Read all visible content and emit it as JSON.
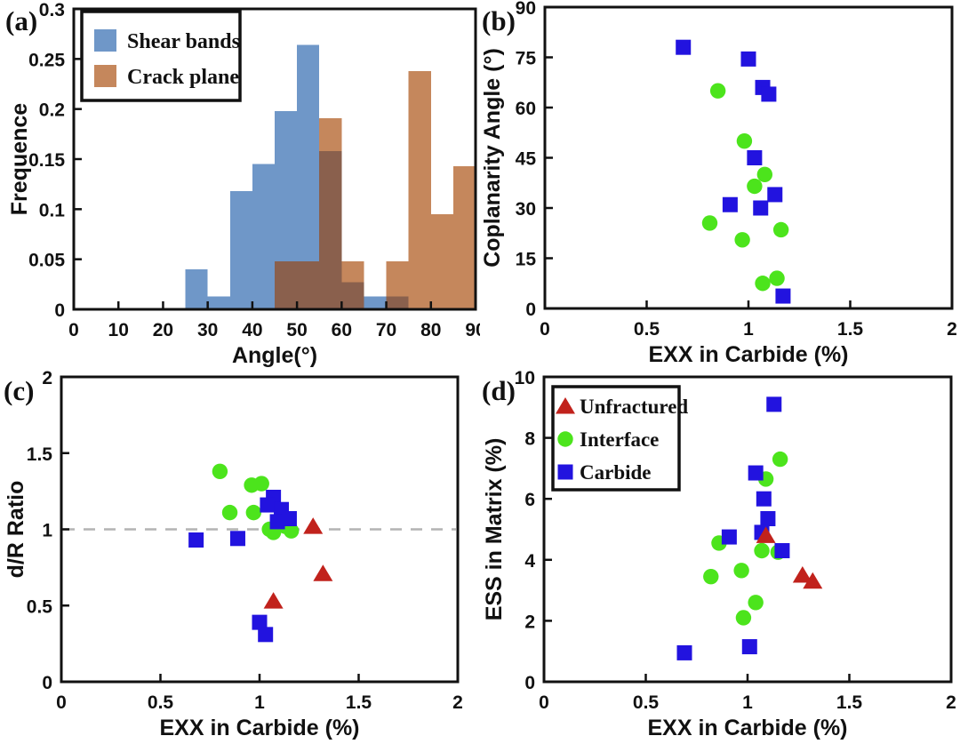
{
  "chart_data": [
    {
      "panel_label": "(a)",
      "type": "histogram",
      "xlabel": "Angle(°)",
      "ylabel": "Frequence",
      "xlim": [
        0,
        90
      ],
      "ylim": [
        0,
        0.3
      ],
      "xticks": [
        0,
        10,
        20,
        30,
        40,
        50,
        60,
        70,
        80,
        90
      ],
      "xtick_labels": [
        "0",
        "10",
        "20",
        "30",
        "40",
        "50",
        "60",
        "70",
        "80",
        "90"
      ],
      "yticks": [
        0,
        0.05,
        0.1,
        0.15,
        0.2,
        0.25,
        0.3
      ],
      "ytick_labels": [
        "0",
        "0.05",
        "0.1",
        "0.15",
        "0.2",
        "0.25",
        "0.3"
      ],
      "bin_width": 5,
      "overlap_color": "#8a604d",
      "grid": false,
      "legend": {
        "position": "top-left"
      },
      "series": [
        {
          "name": "Shear bands",
          "color": "#6f97c8",
          "bins": [
            [
              25,
              0.04
            ],
            [
              30,
              0.013
            ],
            [
              35,
              0.118
            ],
            [
              40,
              0.145
            ],
            [
              45,
              0.198
            ],
            [
              50,
              0.264
            ],
            [
              55,
              0.158
            ],
            [
              60,
              0.027
            ],
            [
              65,
              0.013
            ],
            [
              70,
              0.013
            ]
          ]
        },
        {
          "name": "Crack plane",
          "color": "#c5875c",
          "bins": [
            [
              45,
              0.048
            ],
            [
              50,
              0.048
            ],
            [
              55,
              0.191
            ],
            [
              60,
              0.048
            ],
            [
              70,
              0.048
            ],
            [
              75,
              0.238
            ],
            [
              80,
              0.095
            ],
            [
              85,
              0.143
            ]
          ]
        }
      ]
    },
    {
      "panel_label": "(b)",
      "type": "scatter",
      "xlabel": "EXX in Carbide (%)",
      "ylabel": "Coplanarity Angle (°)",
      "xlim": [
        0,
        2
      ],
      "ylim": [
        0,
        90
      ],
      "xticks": [
        0,
        0.5,
        1,
        1.5,
        2
      ],
      "xtick_labels": [
        "0",
        "0.5",
        "1",
        "1.5",
        "2"
      ],
      "yticks": [
        0,
        15,
        30,
        45,
        60,
        75,
        90
      ],
      "ytick_labels": [
        "0",
        "15",
        "30",
        "45",
        "60",
        "75",
        "90"
      ],
      "grid": false,
      "series": [
        {
          "name": "Interface",
          "marker": "circle",
          "color": "#4ce41c",
          "points": [
            [
              0.85,
              65
            ],
            [
              0.98,
              50
            ],
            [
              1.08,
              40
            ],
            [
              1.03,
              36.5
            ],
            [
              0.81,
              25.5
            ],
            [
              1.16,
              23.5
            ],
            [
              0.97,
              20.5
            ],
            [
              1.14,
              9
            ],
            [
              1.07,
              7.5
            ]
          ]
        },
        {
          "name": "Carbide",
          "marker": "square",
          "color": "#2213df",
          "points": [
            [
              0.68,
              78
            ],
            [
              1.0,
              74.5
            ],
            [
              1.07,
              66
            ],
            [
              1.1,
              64
            ],
            [
              1.03,
              45
            ],
            [
              1.13,
              34
            ],
            [
              0.91,
              31
            ],
            [
              1.06,
              30
            ],
            [
              1.17,
              3.7
            ]
          ]
        }
      ]
    },
    {
      "panel_label": "(c)",
      "type": "scatter",
      "xlabel": "EXX in Carbide (%)",
      "ylabel": "d/R Ratio",
      "xlim": [
        0,
        2
      ],
      "ylim": [
        0,
        2
      ],
      "xticks": [
        0,
        0.5,
        1,
        1.5,
        2
      ],
      "xtick_labels": [
        "0",
        "0.5",
        "1",
        "1.5",
        "2"
      ],
      "yticks": [
        0,
        0.5,
        1,
        1.5,
        2
      ],
      "ytick_labels": [
        "0",
        "0.5",
        "1",
        "1.5",
        "2"
      ],
      "refline_y": 1,
      "refline_color": "#b3b3b3",
      "grid": false,
      "series": [
        {
          "name": "Interface",
          "marker": "circle",
          "color": "#4ce41c",
          "points": [
            [
              0.8,
              1.38
            ],
            [
              0.96,
              1.29
            ],
            [
              1.01,
              1.3
            ],
            [
              0.85,
              1.11
            ],
            [
              0.97,
              1.11
            ],
            [
              1.05,
              1.0
            ],
            [
              1.07,
              0.98
            ],
            [
              1.13,
              1.02
            ],
            [
              1.16,
              0.99
            ]
          ]
        },
        {
          "name": "Carbide",
          "marker": "square",
          "color": "#2213df",
          "points": [
            [
              1.07,
              1.21
            ],
            [
              1.04,
              1.16
            ],
            [
              1.11,
              1.13
            ],
            [
              1.09,
              1.05
            ],
            [
              1.15,
              1.07
            ],
            [
              0.68,
              0.93
            ],
            [
              0.89,
              0.94
            ],
            [
              1.0,
              0.39
            ],
            [
              1.03,
              0.31
            ]
          ]
        },
        {
          "name": "Unfractured",
          "marker": "triangle",
          "color": "#c1221c",
          "points": [
            [
              1.27,
              1.02
            ],
            [
              1.32,
              0.71
            ],
            [
              1.07,
              0.53
            ]
          ]
        }
      ]
    },
    {
      "panel_label": "(d)",
      "type": "scatter",
      "xlabel": "EXX in Carbide (%)",
      "ylabel": "ESS in Matrix (%)",
      "xlim": [
        0,
        2
      ],
      "ylim": [
        0,
        10
      ],
      "xticks": [
        0,
        0.5,
        1,
        1.5,
        2
      ],
      "xtick_labels": [
        "0",
        "0.5",
        "1",
        "1.5",
        "2"
      ],
      "yticks": [
        0,
        2,
        4,
        6,
        8,
        10
      ],
      "ytick_labels": [
        "0",
        "2",
        "4",
        "6",
        "8",
        "10"
      ],
      "grid": false,
      "legend": {
        "position": "top-left",
        "order": [
          "Unfractured",
          "Interface",
          "Carbide"
        ]
      },
      "series": [
        {
          "name": "Interface",
          "marker": "circle",
          "color": "#4ce41c",
          "points": [
            [
              1.16,
              7.3
            ],
            [
              1.09,
              6.65
            ],
            [
              0.86,
              4.55
            ],
            [
              1.07,
              4.3
            ],
            [
              1.15,
              4.25
            ],
            [
              0.97,
              3.65
            ],
            [
              0.82,
              3.45
            ],
            [
              1.04,
              2.6
            ],
            [
              0.98,
              2.1
            ]
          ]
        },
        {
          "name": "Carbide",
          "marker": "square",
          "color": "#2213df",
          "points": [
            [
              1.13,
              9.1
            ],
            [
              1.04,
              6.85
            ],
            [
              1.08,
              6.0
            ],
            [
              1.1,
              5.35
            ],
            [
              1.07,
              4.9
            ],
            [
              0.91,
              4.75
            ],
            [
              1.17,
              4.3
            ],
            [
              1.01,
              1.15
            ],
            [
              0.69,
              0.95
            ]
          ]
        },
        {
          "name": "Unfractured",
          "marker": "triangle",
          "color": "#c1221c",
          "points": [
            [
              1.09,
              4.8
            ],
            [
              1.27,
              3.5
            ],
            [
              1.32,
              3.3
            ]
          ]
        }
      ]
    }
  ]
}
